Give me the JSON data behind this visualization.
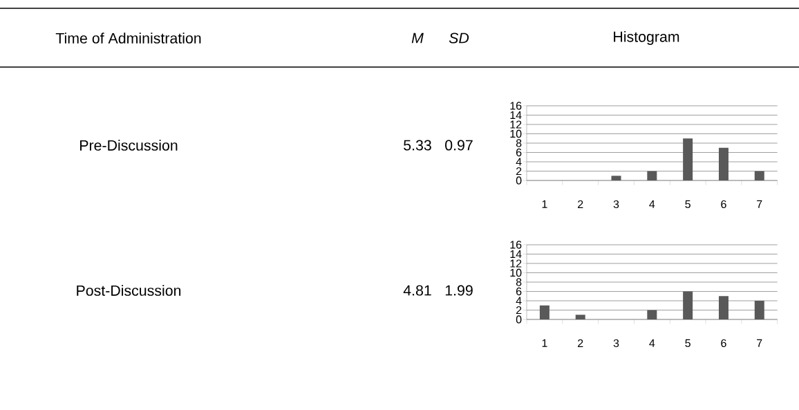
{
  "chart_data": [
    {
      "type": "other",
      "annotations": [
        "Time of Administration",
        "M",
        "SD",
        "Histogram"
      ]
    },
    {
      "type": "bar",
      "annotations": [
        "Pre-Discussion",
        "5.33",
        "0.97"
      ],
      "categories": [
        "1",
        "2",
        "3",
        "4",
        "5",
        "6",
        "7"
      ],
      "values": [
        0,
        0,
        1,
        2,
        9,
        7,
        2
      ],
      "color": "#595959",
      "ylim": [
        0,
        16
      ],
      "yticks": [
        0,
        2,
        4,
        6,
        8,
        10,
        12,
        14,
        16
      ],
      "grid": "y"
    },
    {
      "type": "bar",
      "annotations": [
        "Post-Discussion",
        "4.81",
        "1.99"
      ],
      "categories": [
        "1",
        "2",
        "3",
        "4",
        "5",
        "6",
        "7"
      ],
      "values": [
        3,
        1,
        0,
        2,
        6,
        5,
        4
      ],
      "color": "#595959",
      "ylim": [
        0,
        16
      ],
      "yticks": [
        0,
        2,
        4,
        6,
        8,
        10,
        12,
        14,
        16
      ],
      "grid": "y"
    }
  ]
}
